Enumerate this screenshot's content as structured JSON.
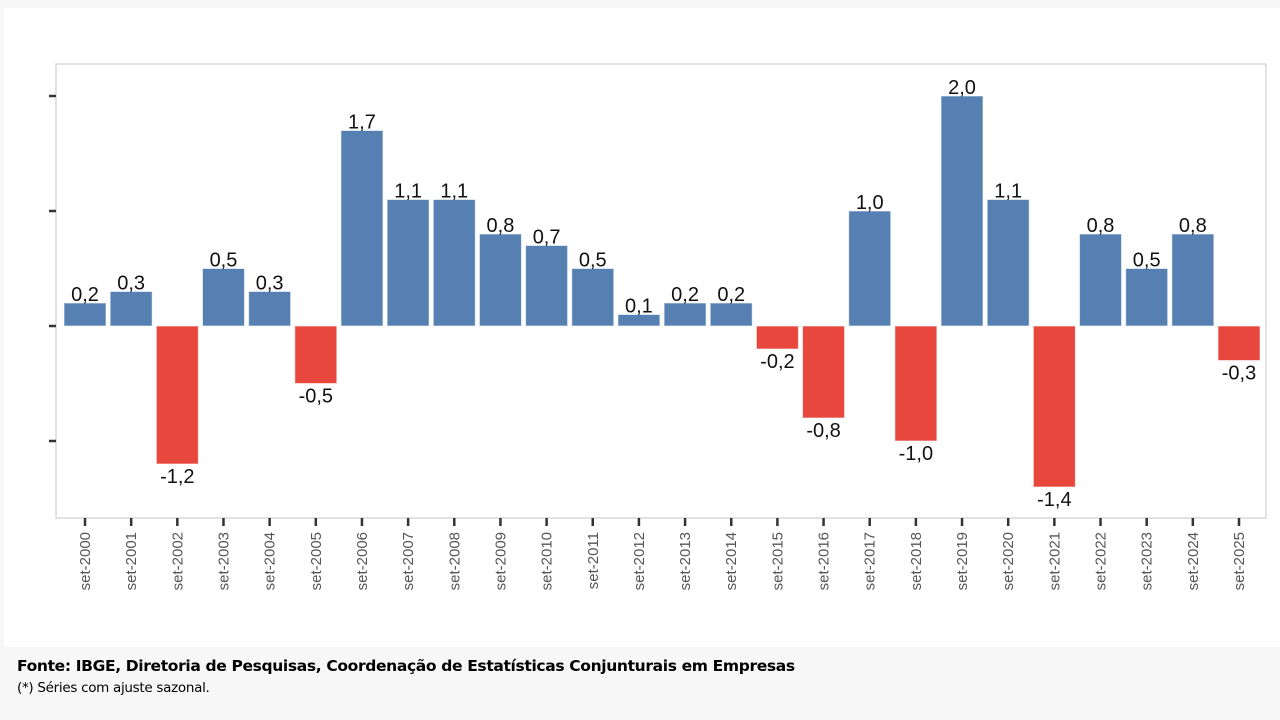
{
  "chart_data": {
    "type": "bar",
    "title": "",
    "xlabel": "",
    "ylabel": "",
    "categories": [
      "set-2000",
      "set-2001",
      "set-2002",
      "set-2003",
      "set-2004",
      "set-2005",
      "set-2006",
      "set-2007",
      "set-2008",
      "set-2009",
      "set-2010",
      "set-2011",
      "set-2012",
      "set-2013",
      "set-2014",
      "set-2015",
      "set-2016",
      "set-2017",
      "set-2018",
      "set-2019",
      "set-2020",
      "set-2021",
      "set-2022",
      "set-2023",
      "set-2024",
      "set-2025"
    ],
    "values": [
      0.2,
      0.3,
      -1.2,
      0.5,
      0.3,
      -0.5,
      1.7,
      1.1,
      1.1,
      0.8,
      0.7,
      0.5,
      0.1,
      0.2,
      0.2,
      -0.2,
      -0.8,
      1.0,
      -1.0,
      2.0,
      1.1,
      -1.4,
      0.8,
      0.5,
      0.8,
      -0.3
    ],
    "data_labels": [
      "0,2",
      "0,3",
      "-1,2",
      "0,5",
      "0,3",
      "-0,5",
      "1,7",
      "1,1",
      "1,1",
      "0,8",
      "0,7",
      "0,5",
      "0,1",
      "0,2",
      "0,2",
      "-0,2",
      "-0,8",
      "1,0",
      "-1,0",
      "2,0",
      "1,1",
      "-1,4",
      "0,8",
      "0,5",
      "0,8",
      "-0,3"
    ],
    "ylim": [
      -1.65,
      2.28
    ],
    "y_ticks": [
      -1,
      0,
      1,
      2
    ],
    "y_tick_labels_visible": false,
    "grid": false,
    "legend": "none",
    "colors": {
      "positive": "#5680B2",
      "negative": "#E8473E"
    }
  },
  "footer": {
    "source": "Fonte: IBGE, Diretoria de Pesquisas, Coordenação de Estatísticas Conjunturais em Empresas",
    "note": "(*) Séries com ajuste sazonal."
  }
}
